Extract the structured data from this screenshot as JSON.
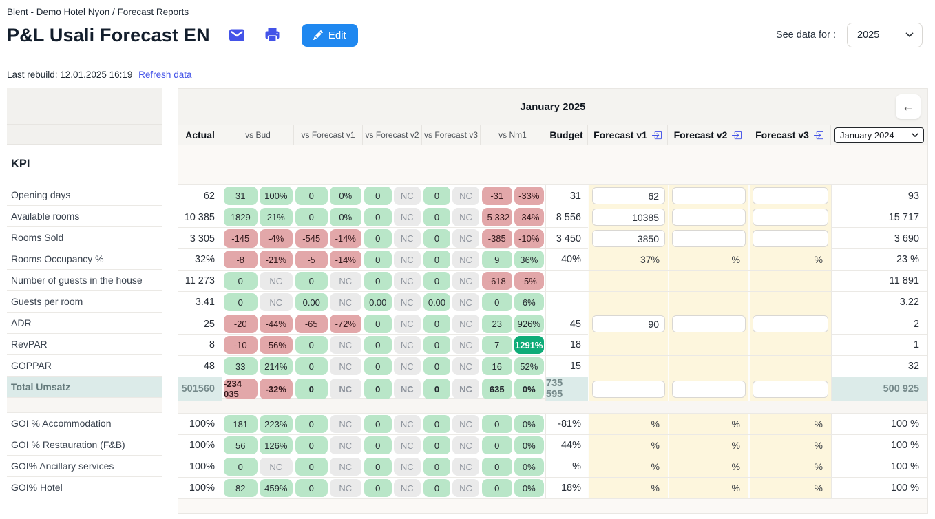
{
  "header": {
    "breadcrumb": "Blent - Demo Hotel Nyon / Forecast Reports",
    "title": "P&L Usali Forecast EN",
    "edit_button": "Edit",
    "see_data_label": "See data for :",
    "year_select": "2025",
    "last_rebuild": "Last rebuild: 12.01.2025 16:19",
    "refresh_link": "Refresh data"
  },
  "table": {
    "month_title": "January 2025",
    "back_arrow": "←",
    "kpi_header": "KPI",
    "columns": {
      "actual": "Actual",
      "vs_bud": "vs Bud",
      "vs_f1": "vs Forecast v1",
      "vs_f2": "vs Forecast v2",
      "vs_f3": "vs Forecast v3",
      "vs_nm1": "vs Nm1",
      "budget": "Budget",
      "f1": "Forecast v1",
      "f2": "Forecast v2",
      "f3": "Forecast v3",
      "compare_select": "January 2024"
    }
  },
  "icons": {
    "email": "envelope-icon",
    "print": "printer-icon",
    "edit": "pencil-icon",
    "forecast_header": "import-arrow-icon",
    "back": "arrow-left-icon",
    "select": "chevron-down-icon"
  },
  "colors": {
    "accent_blue": "#1f88f0",
    "indigo": "#4353e8",
    "pill_green": "#b9e6c8",
    "pill_red": "#e2a7a9",
    "pill_gray": "#eaeaea",
    "pill_teal": "#0fac78",
    "total_row": "#dcebe9",
    "forecast_cream": "#fdf6dd"
  },
  "rows": [
    {
      "label": "Opening days",
      "actual": "62",
      "cmp": [
        [
          "31",
          "g",
          "100%",
          "g"
        ],
        [
          "0",
          "g",
          "0%",
          "g"
        ],
        [
          "0",
          "g",
          "NC",
          "n"
        ],
        [
          "0",
          "g",
          "NC",
          "n"
        ],
        [
          "-31",
          "r",
          "-33%",
          "r"
        ]
      ],
      "budget": "31",
      "fc": [
        [
          "input",
          "62"
        ],
        [
          "input",
          ""
        ],
        [
          "input",
          ""
        ]
      ],
      "prev": "93"
    },
    {
      "label": "Available rooms",
      "actual": "10 385",
      "cmp": [
        [
          "1829",
          "g",
          "21%",
          "g"
        ],
        [
          "0",
          "g",
          "0%",
          "g"
        ],
        [
          "0",
          "g",
          "NC",
          "n"
        ],
        [
          "0",
          "g",
          "NC",
          "n"
        ],
        [
          "-5 332",
          "r",
          "-34%",
          "r"
        ]
      ],
      "budget": "8 556",
      "fc": [
        [
          "input",
          "10385"
        ],
        [
          "input",
          ""
        ],
        [
          "input",
          ""
        ]
      ],
      "prev": "15 717"
    },
    {
      "label": "Rooms Sold",
      "actual": "3 305",
      "cmp": [
        [
          "-145",
          "r",
          "-4%",
          "r"
        ],
        [
          "-545",
          "r",
          "-14%",
          "r"
        ],
        [
          "0",
          "g",
          "NC",
          "n"
        ],
        [
          "0",
          "g",
          "NC",
          "n"
        ],
        [
          "-385",
          "r",
          "-10%",
          "r"
        ]
      ],
      "budget": "3 450",
      "fc": [
        [
          "input",
          "3850"
        ],
        [
          "input",
          ""
        ],
        [
          "input",
          ""
        ]
      ],
      "prev": "3 690"
    },
    {
      "label": "Rooms Occupancy %",
      "actual": "32%",
      "cmp": [
        [
          "-8",
          "r",
          "-21%",
          "r"
        ],
        [
          "-5",
          "r",
          "-14%",
          "r"
        ],
        [
          "0",
          "g",
          "NC",
          "n"
        ],
        [
          "0",
          "g",
          "NC",
          "n"
        ],
        [
          "9",
          "g",
          "36%",
          "g"
        ]
      ],
      "budget": "40%",
      "fc": [
        [
          "text",
          "37%"
        ],
        [
          "text",
          "%"
        ],
        [
          "text",
          "%"
        ]
      ],
      "prev": "23 %"
    },
    {
      "label": "Number of guests in the house",
      "actual": "11 273",
      "cmp": [
        [
          "0",
          "g",
          "NC",
          "n"
        ],
        [
          "0",
          "g",
          "NC",
          "n"
        ],
        [
          "0",
          "g",
          "NC",
          "n"
        ],
        [
          "0",
          "g",
          "NC",
          "n"
        ],
        [
          "-618",
          "r",
          "-5%",
          "r"
        ]
      ],
      "budget": "",
      "fc": [
        [
          "empty",
          ""
        ],
        [
          "empty",
          ""
        ],
        [
          "empty",
          ""
        ]
      ],
      "prev": "11 891"
    },
    {
      "label": "Guests per room",
      "actual": "3.41",
      "cmp": [
        [
          "0",
          "g",
          "NC",
          "n"
        ],
        [
          "0.00",
          "g",
          "NC",
          "n"
        ],
        [
          "0.00",
          "g",
          "NC",
          "n"
        ],
        [
          "0.00",
          "g",
          "NC",
          "n"
        ],
        [
          "0",
          "g",
          "6%",
          "g"
        ]
      ],
      "budget": "",
      "fc": [
        [
          "empty",
          ""
        ],
        [
          "empty",
          ""
        ],
        [
          "empty",
          ""
        ]
      ],
      "prev": "3.22"
    },
    {
      "label": "ADR",
      "actual": "25",
      "cmp": [
        [
          "-20",
          "r",
          "-44%",
          "r"
        ],
        [
          "-65",
          "r",
          "-72%",
          "r"
        ],
        [
          "0",
          "g",
          "NC",
          "n"
        ],
        [
          "0",
          "g",
          "NC",
          "n"
        ],
        [
          "23",
          "g",
          "926%",
          "g"
        ]
      ],
      "budget": "45",
      "fc": [
        [
          "input",
          "90"
        ],
        [
          "input",
          ""
        ],
        [
          "input",
          ""
        ]
      ],
      "prev": "2"
    },
    {
      "label": "RevPAR",
      "actual": "8",
      "cmp": [
        [
          "-10",
          "r",
          "-56%",
          "r"
        ],
        [
          "0",
          "g",
          "NC",
          "n"
        ],
        [
          "0",
          "g",
          "NC",
          "n"
        ],
        [
          "0",
          "g",
          "NC",
          "n"
        ],
        [
          "7",
          "g",
          "1291%",
          "t"
        ]
      ],
      "budget": "18",
      "fc": [
        [
          "empty",
          ""
        ],
        [
          "empty",
          ""
        ],
        [
          "empty",
          ""
        ]
      ],
      "prev": "1"
    },
    {
      "label": "GOPPAR",
      "actual": "48",
      "cmp": [
        [
          "33",
          "g",
          "214%",
          "g"
        ],
        [
          "0",
          "g",
          "NC",
          "n"
        ],
        [
          "0",
          "g",
          "NC",
          "n"
        ],
        [
          "0",
          "g",
          "NC",
          "n"
        ],
        [
          "16",
          "g",
          "52%",
          "g"
        ]
      ],
      "budget": "15",
      "fc": [
        [
          "empty",
          ""
        ],
        [
          "empty",
          ""
        ],
        [
          "empty",
          ""
        ]
      ],
      "prev": "32"
    },
    {
      "label": "Total Umsatz",
      "total": true,
      "actual": "501560",
      "cmp": [
        [
          "-234 035",
          "r",
          "-32%",
          "r"
        ],
        [
          "0",
          "g",
          "NC",
          "n"
        ],
        [
          "0",
          "g",
          "NC",
          "n"
        ],
        [
          "0",
          "g",
          "NC",
          "n"
        ],
        [
          "635",
          "g",
          "0%",
          "g"
        ]
      ],
      "budget": "735 595",
      "fc": [
        [
          "input",
          ""
        ],
        [
          "input",
          ""
        ],
        [
          "input",
          ""
        ]
      ],
      "prev": "500 925"
    },
    {
      "type": "gap"
    },
    {
      "label": "GOI % Accommodation",
      "actual": "100%",
      "cmp": [
        [
          "181",
          "g",
          "223%",
          "g"
        ],
        [
          "0",
          "g",
          "NC",
          "n"
        ],
        [
          "0",
          "g",
          "NC",
          "n"
        ],
        [
          "0",
          "g",
          "NC",
          "n"
        ],
        [
          "0",
          "g",
          "0%",
          "g"
        ]
      ],
      "budget": "-81%",
      "fc": [
        [
          "text",
          "%"
        ],
        [
          "text",
          "%"
        ],
        [
          "text",
          "%"
        ]
      ],
      "prev": "100 %"
    },
    {
      "label": "GOI % Restauration (F&B)",
      "actual": "100%",
      "cmp": [
        [
          "56",
          "g",
          "126%",
          "g"
        ],
        [
          "0",
          "g",
          "NC",
          "n"
        ],
        [
          "0",
          "g",
          "NC",
          "n"
        ],
        [
          "0",
          "g",
          "NC",
          "n"
        ],
        [
          "0",
          "g",
          "0%",
          "g"
        ]
      ],
      "budget": "44%",
      "fc": [
        [
          "text",
          "%"
        ],
        [
          "text",
          "%"
        ],
        [
          "text",
          "%"
        ]
      ],
      "prev": "100 %"
    },
    {
      "label": "GOI% Ancillary services",
      "actual": "100%",
      "cmp": [
        [
          "0",
          "g",
          "NC",
          "n"
        ],
        [
          "0",
          "g",
          "NC",
          "n"
        ],
        [
          "0",
          "g",
          "NC",
          "n"
        ],
        [
          "0",
          "g",
          "NC",
          "n"
        ],
        [
          "0",
          "g",
          "0%",
          "g"
        ]
      ],
      "budget": "%",
      "fc": [
        [
          "text",
          "%"
        ],
        [
          "text",
          "%"
        ],
        [
          "text",
          "%"
        ]
      ],
      "prev": "100 %"
    },
    {
      "label": "GOI% Hotel",
      "actual": "100%",
      "cmp": [
        [
          "82",
          "g",
          "459%",
          "g"
        ],
        [
          "0",
          "g",
          "NC",
          "n"
        ],
        [
          "0",
          "g",
          "NC",
          "n"
        ],
        [
          "0",
          "g",
          "NC",
          "n"
        ],
        [
          "0",
          "g",
          "0%",
          "g"
        ]
      ],
      "budget": "18%",
      "fc": [
        [
          "text",
          "%"
        ],
        [
          "text",
          "%"
        ],
        [
          "text",
          "%"
        ]
      ],
      "prev": "100 %"
    }
  ]
}
